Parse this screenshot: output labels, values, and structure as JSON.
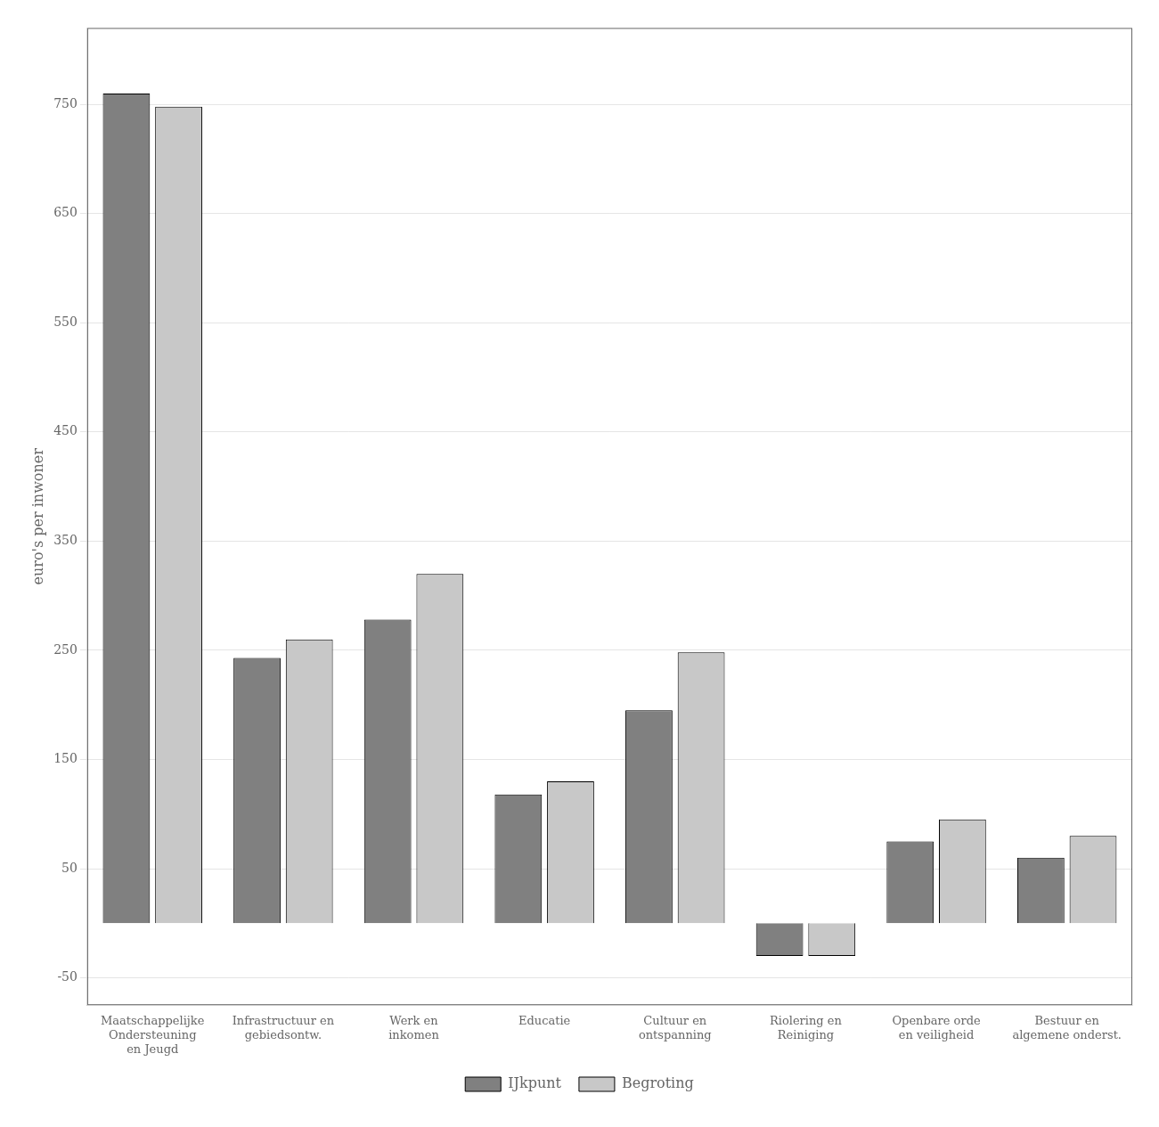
{
  "chart_data": {
    "type": "bar",
    "ylabel": "euro's per inwoner",
    "categories": [
      "Maatschappelijke\nOndersteuning\nen Jeugd",
      "Infrastructuur en\ngebiedsontw.",
      "Werk en\ninkomen",
      "Educatie",
      "Cultuur en\nontspanning",
      "Riolering en\nReiniging",
      "Openbare orde\nen veiligheid",
      "Bestuur en\nalgemene onderst."
    ],
    "series": [
      {
        "name": "IJkpunt",
        "color": "#808080",
        "values": [
          760,
          243,
          278,
          118,
          195,
          -30,
          75,
          60
        ]
      },
      {
        "name": "Begroting",
        "color": "#c8c8c8",
        "values": [
          748,
          260,
          320,
          130,
          248,
          -30,
          95,
          80
        ]
      }
    ],
    "ylim": [
      -75,
      820
    ],
    "yticks": [
      -50,
      50,
      150,
      250,
      350,
      450,
      550,
      650,
      750
    ],
    "grid": true,
    "legend": "bottom"
  }
}
